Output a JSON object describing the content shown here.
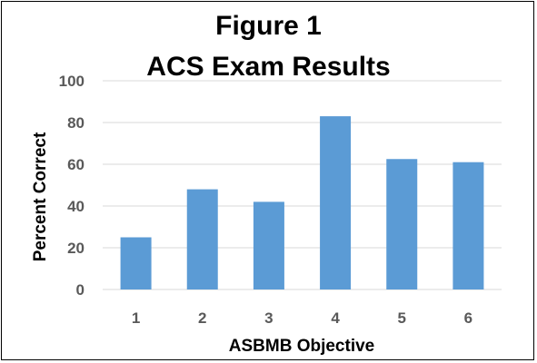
{
  "chart_data": {
    "type": "bar",
    "title": [
      "Figure 1",
      "ACS Exam Results"
    ],
    "xlabel": "ASBMB Objective",
    "ylabel": "Percent Correct",
    "categories": [
      "1",
      "2",
      "3",
      "4",
      "5",
      "6"
    ],
    "values": [
      25,
      48,
      42,
      83,
      62.5,
      61
    ],
    "ylim": [
      0,
      100
    ],
    "yticks": [
      "0",
      "20",
      "40",
      "60",
      "80",
      "100"
    ],
    "grid": true,
    "bar_color": "#5b9bd5",
    "grid_color": "#d9d9d9"
  }
}
